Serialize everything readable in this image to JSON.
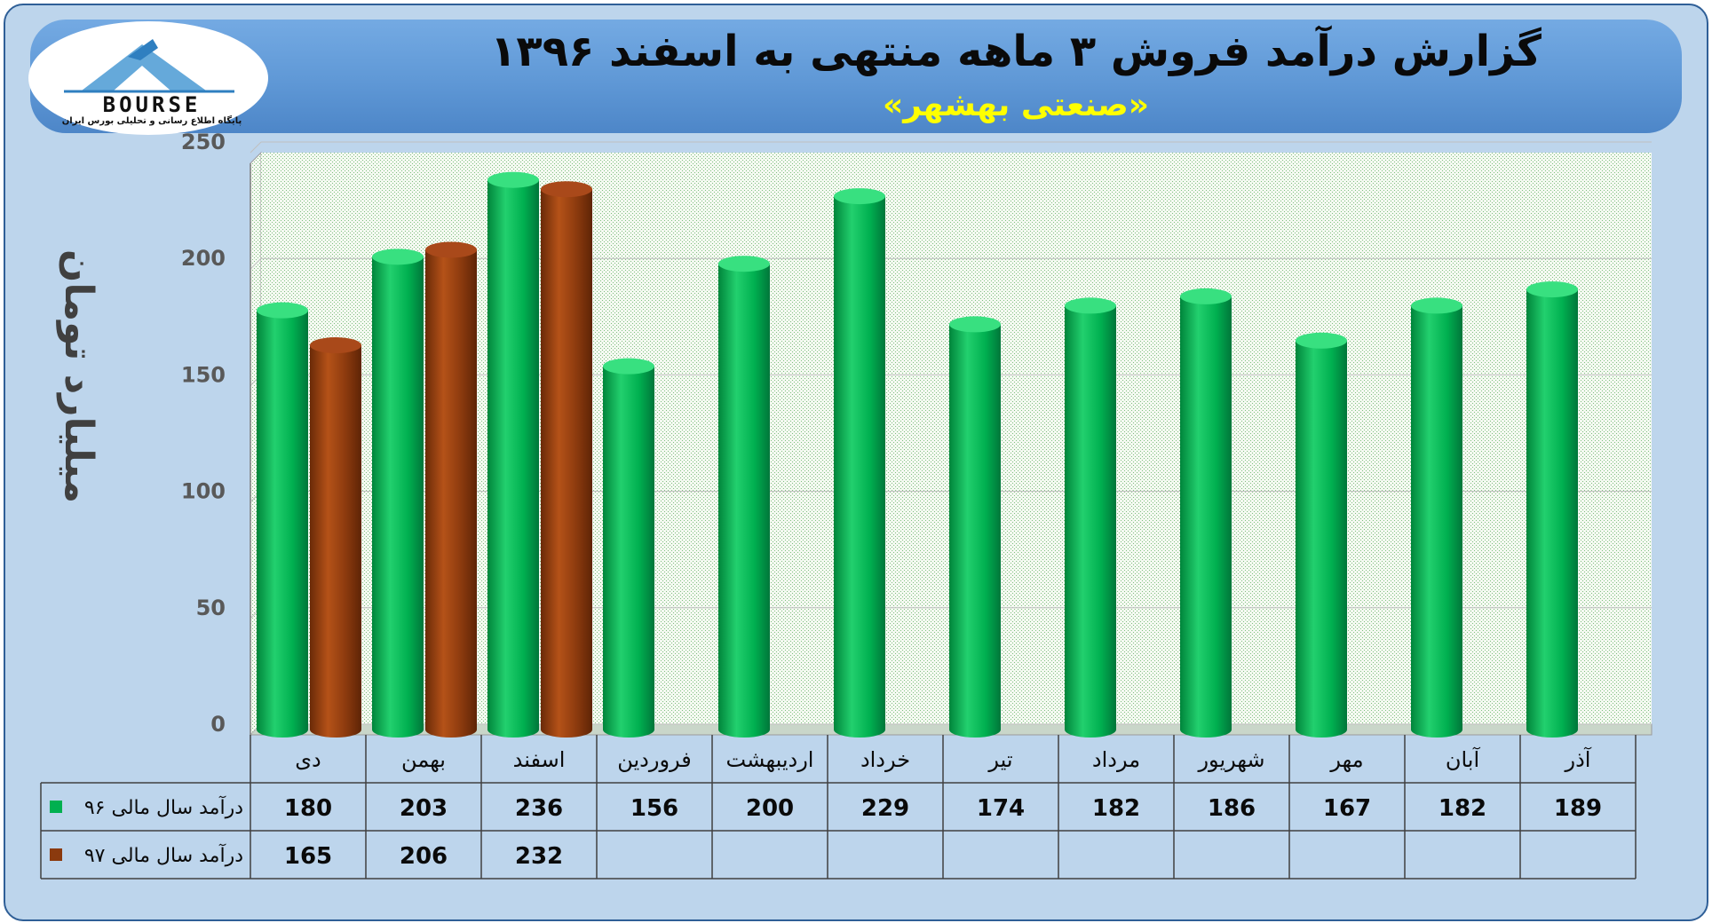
{
  "title": "گزارش درآمد فروش ۳ ماهه منتهی به اسفند ۱۳۹۶",
  "subtitle": "«صنعتی بهشهر»",
  "logo": {
    "text": "BOURSE",
    "subtext": "پایگاه اطلاع رسانی و تحلیلی بورس ایران"
  },
  "colors": {
    "series96": "#00b050",
    "series97": "#8b3a0e",
    "banner": "#5f98d6",
    "background": "#bdd5ec"
  },
  "chart_data": {
    "type": "bar",
    "ylabel": "میلیارد تومان",
    "ylim": [
      0,
      250
    ],
    "yticks": [
      0,
      50,
      100,
      150,
      200,
      250
    ],
    "grid": true,
    "categories": [
      "دی",
      "بهمن",
      "اسفند",
      "فروردین",
      "اردیبهشت",
      "خرداد",
      "تیر",
      "مرداد",
      "شهریور",
      "مهر",
      "آبان",
      "آذر"
    ],
    "series": [
      {
        "name": "درآمد سال مالی ۹۶",
        "values": [
          180,
          203,
          236,
          156,
          200,
          229,
          174,
          182,
          186,
          167,
          182,
          189
        ]
      },
      {
        "name": "درآمد سال مالی ۹۷",
        "values": [
          165,
          206,
          232,
          null,
          null,
          null,
          null,
          null,
          null,
          null,
          null,
          null
        ]
      }
    ]
  }
}
